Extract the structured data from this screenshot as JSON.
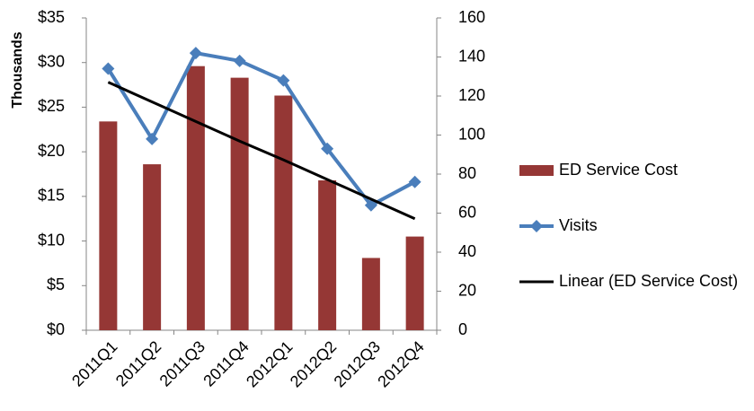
{
  "chart_data": {
    "type": "bar",
    "categories": [
      "2011Q1",
      "2011Q2",
      "2011Q3",
      "2011Q4",
      "2012Q1",
      "2012Q2",
      "2012Q3",
      "2012Q4"
    ],
    "y_label": "Thousands",
    "ylim": [
      0,
      35
    ],
    "yticks": [
      {
        "value": 0,
        "label": "$0"
      },
      {
        "value": 5,
        "label": "$5"
      },
      {
        "value": 10,
        "label": "$10"
      },
      {
        "value": 15,
        "label": "$15"
      },
      {
        "value": 20,
        "label": "$20"
      },
      {
        "value": 25,
        "label": "$25"
      },
      {
        "value": 30,
        "label": "$30"
      },
      {
        "value": 35,
        "label": "$35"
      }
    ],
    "y2lim": [
      0,
      160
    ],
    "y2ticks": [
      0,
      20,
      40,
      60,
      80,
      100,
      120,
      140,
      160
    ],
    "grid": false,
    "legend": "right",
    "series": [
      {
        "name": "ED Service Cost",
        "type": "bar",
        "color": "#953735",
        "values": [
          23.4,
          18.6,
          29.6,
          28.3,
          26.3,
          16.8,
          8.1,
          10.5
        ]
      },
      {
        "name": "Visits",
        "type": "line",
        "axis": "y2",
        "marker": "diamond",
        "color": "#4a7ebb",
        "values": [
          134,
          98,
          142,
          138,
          128,
          93,
          64,
          76
        ]
      },
      {
        "name": "Linear (ED Service Cost)",
        "type": "line",
        "color": "#000000",
        "values": [
          27.8,
          25.6,
          23.4,
          21.2,
          19.1,
          16.9,
          14.7,
          12.5
        ]
      }
    ]
  }
}
